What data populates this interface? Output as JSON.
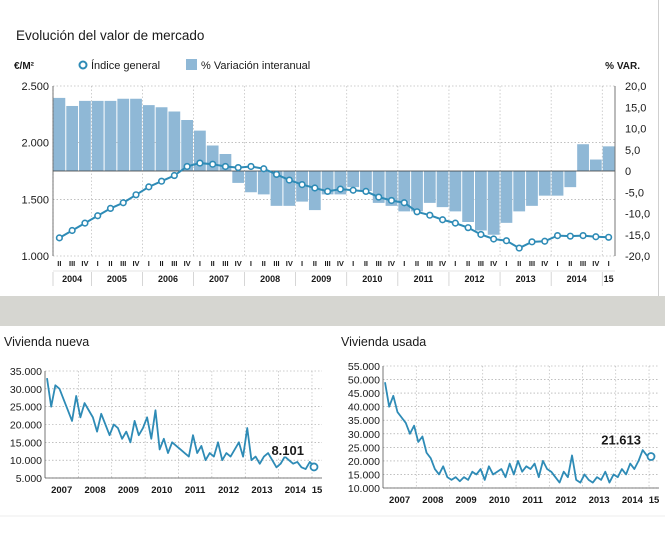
{
  "colors": {
    "bar": "#8fb8d6",
    "line": "#2e8bb6",
    "marker_fill": "#ffffff",
    "band": "#d6d6d1"
  },
  "main": {
    "title": "Evolución del valor de mercado",
    "left_unit": "€/M²",
    "right_unit": "% VAR.",
    "legend": {
      "line_label": "Índice general",
      "bar_label": "% Variación interanual"
    }
  },
  "chart_data": [
    {
      "type": "bar+line",
      "title": "Evolución del valor de mercado",
      "ylabel": "€/M²",
      "y2label": "% VAR.",
      "ylim": [
        1000,
        2500
      ],
      "y2lim": [
        -20,
        20
      ],
      "yticks": [
        "2.500",
        "2.000",
        "1.500",
        "1.000"
      ],
      "y2ticks": [
        "20,0",
        "15,0",
        "10,0",
        "5,0",
        "0",
        "-5,0",
        "-10,0",
        "-15,0",
        "-20,0"
      ],
      "quarter_labels": [
        "II",
        "III",
        "IV",
        "I",
        "II",
        "III",
        "IV",
        "I",
        "II",
        "III",
        "IV",
        "I",
        "II",
        "III",
        "IV",
        "I",
        "II",
        "III",
        "IV",
        "I",
        "II",
        "III",
        "IV",
        "I",
        "II",
        "III",
        "IV",
        "I",
        "II",
        "III",
        "IV",
        "I",
        "II",
        "III",
        "IV",
        "I",
        "II",
        "III",
        "IV",
        "I",
        "II",
        "III",
        "IV",
        "I"
      ],
      "year_labels": [
        "2004",
        "2005",
        "2006",
        "2007",
        "2008",
        "2009",
        "2010",
        "2011",
        "2012",
        "2013",
        "2014",
        "15"
      ],
      "year_start_index": [
        0,
        3,
        7,
        11,
        15,
        19,
        23,
        27,
        31,
        35,
        39,
        43
      ],
      "grid": true,
      "series": [
        {
          "name": "Índice general",
          "kind": "line",
          "values": [
            1160,
            1225,
            1290,
            1355,
            1420,
            1470,
            1540,
            1610,
            1660,
            1710,
            1790,
            1820,
            1810,
            1790,
            1780,
            1790,
            1770,
            1720,
            1670,
            1630,
            1600,
            1570,
            1590,
            1580,
            1570,
            1520,
            1490,
            1470,
            1390,
            1360,
            1320,
            1290,
            1250,
            1190,
            1150,
            1135,
            1070,
            1125,
            1130,
            1180,
            1175,
            1180,
            1170,
            1165
          ]
        },
        {
          "name": "% Variación interanual",
          "kind": "bar",
          "values": [
            17.2,
            15.3,
            16.5,
            16.5,
            16.5,
            17.0,
            17.0,
            15.5,
            15.0,
            14.0,
            12.0,
            9.5,
            6.0,
            4.0,
            -2.8,
            -5.0,
            -5.5,
            -8.2,
            -8.2,
            -7.2,
            -9.2,
            -5.5,
            -5.5,
            -3.8,
            -4.7,
            -7.5,
            -8.2,
            -9.5,
            -9.5,
            -7.5,
            -8.5,
            -9.5,
            -12.0,
            -14.0,
            -15.0,
            -12.2,
            -9.5,
            -8.2,
            -5.8,
            -5.8,
            -3.8,
            6.3,
            2.7,
            5.8
          ]
        }
      ]
    },
    {
      "type": "line",
      "title": "Vivienda nueva",
      "ylim": [
        5000,
        35000
      ],
      "yticks": [
        "35.000",
        "30.000",
        "25.000",
        "20.000",
        "15.000",
        "10.000",
        "5.000"
      ],
      "x_labels": [
        "2007",
        "2008",
        "2009",
        "2010",
        "2011",
        "2012",
        "2013",
        "2014",
        "15"
      ],
      "end_label": "8.101",
      "series": [
        {
          "name": "Vivienda nueva",
          "values": [
            33000,
            25000,
            31000,
            30000,
            27000,
            24000,
            21000,
            28000,
            22000,
            26000,
            24000,
            22000,
            18000,
            23000,
            20000,
            17000,
            20000,
            19000,
            16000,
            18000,
            15000,
            21000,
            17000,
            19000,
            22000,
            16000,
            24000,
            13000,
            16000,
            12000,
            15000,
            14000,
            13000,
            12000,
            11000,
            17000,
            12000,
            14000,
            10000,
            12000,
            11000,
            15000,
            10000,
            12000,
            11000,
            13000,
            15000,
            11000,
            19000,
            10000,
            11000,
            9000,
            11000,
            12000,
            10000,
            8000,
            9000,
            11000,
            10000,
            9000,
            9500,
            8000,
            7500,
            9500,
            8101
          ]
        }
      ]
    },
    {
      "type": "line",
      "title": "Vivienda usada",
      "ylim": [
        10000,
        55000
      ],
      "yticks": [
        "55.000",
        "50.000",
        "45.000",
        "40.000",
        "35.000",
        "30.000",
        "25.000",
        "20.000",
        "15.000",
        "10.000"
      ],
      "x_labels": [
        "2007",
        "2008",
        "2009",
        "2010",
        "2011",
        "2012",
        "2013",
        "2014",
        "15"
      ],
      "end_label": "21.613",
      "series": [
        {
          "name": "Vivienda usada",
          "values": [
            49000,
            40000,
            44000,
            38000,
            36000,
            34000,
            30000,
            33000,
            27000,
            29000,
            23000,
            21000,
            17000,
            15000,
            18000,
            14000,
            13000,
            14000,
            12500,
            14000,
            13000,
            16000,
            15000,
            17000,
            13000,
            18000,
            15000,
            16000,
            17000,
            14000,
            19000,
            15000,
            20000,
            16000,
            18000,
            17000,
            19000,
            14000,
            20000,
            17000,
            16000,
            14000,
            12000,
            16000,
            14000,
            22000,
            13000,
            12000,
            15000,
            13000,
            12000,
            14000,
            13000,
            16000,
            12000,
            15000,
            14000,
            17000,
            15000,
            19000,
            17000,
            20000,
            24000,
            22000,
            21613
          ]
        }
      ]
    }
  ]
}
